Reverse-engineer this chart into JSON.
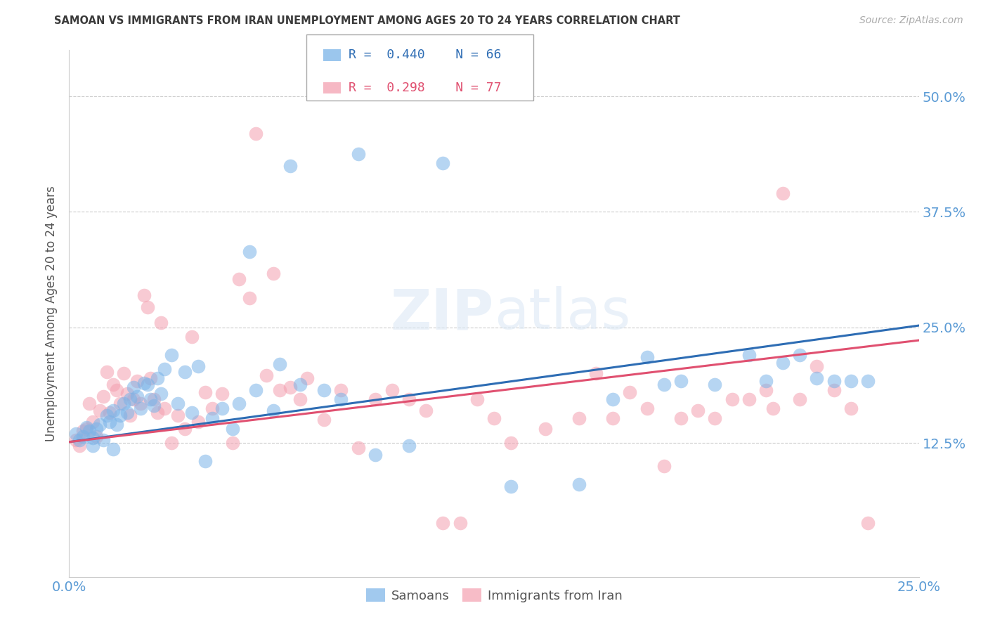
{
  "title": "SAMOAN VS IMMIGRANTS FROM IRAN UNEMPLOYMENT AMONG AGES 20 TO 24 YEARS CORRELATION CHART",
  "source": "Source: ZipAtlas.com",
  "ylabel": "Unemployment Among Ages 20 to 24 years",
  "ytick_values": [
    0.5,
    0.375,
    0.25,
    0.125
  ],
  "xlim": [
    0.0,
    0.25
  ],
  "ylim": [
    -0.02,
    0.55
  ],
  "title_color": "#3a3a3a",
  "source_color": "#aaaaaa",
  "ylabel_color": "#555555",
  "ytick_color": "#5b9bd5",
  "xtick_color": "#5b9bd5",
  "grid_color": "#cccccc",
  "blue_color": "#7ab3e8",
  "pink_color": "#f4a0b0",
  "blue_line_color": "#2e6db4",
  "pink_line_color": "#e05070",
  "background_color": "#ffffff",
  "blue_line_start_y": 0.126,
  "blue_line_end_y": 0.252,
  "pink_line_start_y": 0.126,
  "pink_line_end_y": 0.236,
  "blue_x": [
    0.002,
    0.003,
    0.004,
    0.005,
    0.006,
    0.007,
    0.007,
    0.008,
    0.009,
    0.01,
    0.011,
    0.012,
    0.013,
    0.013,
    0.014,
    0.015,
    0.016,
    0.017,
    0.018,
    0.019,
    0.02,
    0.021,
    0.022,
    0.023,
    0.024,
    0.025,
    0.026,
    0.027,
    0.028,
    0.03,
    0.032,
    0.034,
    0.036,
    0.038,
    0.04,
    0.042,
    0.045,
    0.048,
    0.05,
    0.053,
    0.055,
    0.06,
    0.062,
    0.065,
    0.068,
    0.075,
    0.08,
    0.085,
    0.09,
    0.1,
    0.11,
    0.13,
    0.15,
    0.16,
    0.17,
    0.175,
    0.18,
    0.19,
    0.2,
    0.205,
    0.21,
    0.215,
    0.22,
    0.225,
    0.23,
    0.235
  ],
  "blue_y": [
    0.135,
    0.128,
    0.132,
    0.142,
    0.138,
    0.13,
    0.122,
    0.14,
    0.145,
    0.128,
    0.155,
    0.148,
    0.118,
    0.16,
    0.145,
    0.155,
    0.168,
    0.158,
    0.172,
    0.185,
    0.175,
    0.162,
    0.19,
    0.188,
    0.172,
    0.165,
    0.195,
    0.178,
    0.205,
    0.22,
    0.168,
    0.202,
    0.158,
    0.208,
    0.105,
    0.152,
    0.162,
    0.14,
    0.168,
    0.332,
    0.182,
    0.16,
    0.21,
    0.425,
    0.188,
    0.182,
    0.172,
    0.438,
    0.112,
    0.122,
    0.428,
    0.078,
    0.08,
    0.172,
    0.218,
    0.188,
    0.192,
    0.188,
    0.22,
    0.192,
    0.212,
    0.22,
    0.195,
    0.192,
    0.192,
    0.192
  ],
  "pink_x": [
    0.002,
    0.003,
    0.004,
    0.005,
    0.006,
    0.007,
    0.008,
    0.009,
    0.01,
    0.011,
    0.012,
    0.013,
    0.014,
    0.015,
    0.016,
    0.017,
    0.018,
    0.019,
    0.02,
    0.021,
    0.022,
    0.023,
    0.024,
    0.025,
    0.026,
    0.027,
    0.028,
    0.03,
    0.032,
    0.034,
    0.036,
    0.038,
    0.04,
    0.042,
    0.045,
    0.048,
    0.05,
    0.053,
    0.055,
    0.058,
    0.06,
    0.062,
    0.065,
    0.068,
    0.07,
    0.075,
    0.08,
    0.085,
    0.09,
    0.095,
    0.1,
    0.105,
    0.11,
    0.115,
    0.12,
    0.125,
    0.13,
    0.14,
    0.15,
    0.155,
    0.16,
    0.165,
    0.17,
    0.175,
    0.18,
    0.185,
    0.19,
    0.195,
    0.2,
    0.205,
    0.207,
    0.21,
    0.215,
    0.22,
    0.225,
    0.23,
    0.235
  ],
  "pink_y": [
    0.128,
    0.122,
    0.138,
    0.14,
    0.168,
    0.148,
    0.132,
    0.16,
    0.175,
    0.202,
    0.158,
    0.188,
    0.182,
    0.168,
    0.2,
    0.178,
    0.155,
    0.172,
    0.192,
    0.168,
    0.285,
    0.272,
    0.195,
    0.172,
    0.158,
    0.255,
    0.162,
    0.125,
    0.155,
    0.14,
    0.24,
    0.148,
    0.18,
    0.162,
    0.178,
    0.125,
    0.302,
    0.282,
    0.46,
    0.198,
    0.308,
    0.182,
    0.185,
    0.172,
    0.195,
    0.15,
    0.182,
    0.12,
    0.172,
    0.182,
    0.172,
    0.16,
    0.038,
    0.038,
    0.172,
    0.152,
    0.125,
    0.14,
    0.152,
    0.2,
    0.152,
    0.18,
    0.162,
    0.1,
    0.152,
    0.16,
    0.152,
    0.172,
    0.172,
    0.182,
    0.162,
    0.395,
    0.172,
    0.208,
    0.182,
    0.162,
    0.038
  ]
}
